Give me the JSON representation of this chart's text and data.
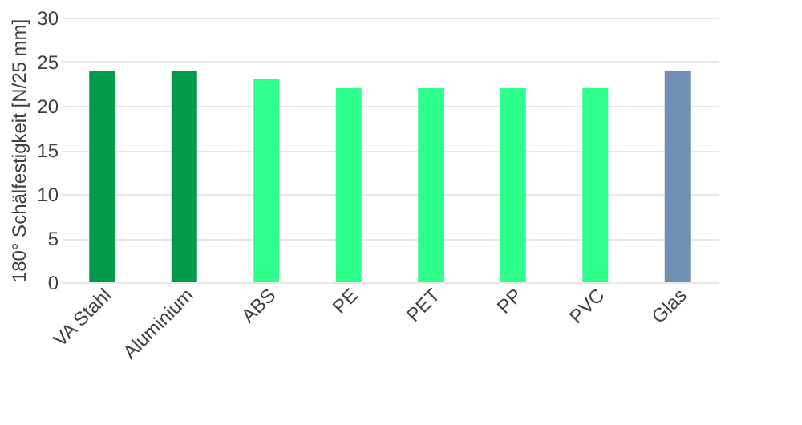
{
  "chart_data": {
    "type": "bar",
    "ylabel": "180° Schälfestigkeit [N/25 mm]",
    "categories": [
      "VA Stahl",
      "Aluminium",
      "ABS",
      "PE",
      "PET",
      "PP",
      "PVC",
      "Glas"
    ],
    "values": [
      24,
      24,
      23,
      22,
      22,
      22,
      22,
      24
    ],
    "colors": [
      "#019a4a",
      "#019a4a",
      "#2dff8c",
      "#2dff8c",
      "#2dff8c",
      "#2dff8c",
      "#2dff8c",
      "#718fb3"
    ],
    "ylim": [
      0,
      30
    ],
    "yticks": [
      0,
      5,
      10,
      15,
      20,
      25,
      30
    ],
    "grid": "y"
  }
}
